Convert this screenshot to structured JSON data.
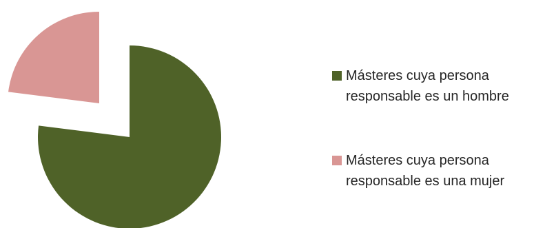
{
  "chart_data": {
    "type": "pie",
    "title": "",
    "slices": [
      {
        "label": "Másteres cuya persona responsable es un hombre",
        "value": 77,
        "color": "#4f6228"
      },
      {
        "label": "Másteres cuya persona responsable es una mujer",
        "value": 23,
        "color": "#d99694"
      }
    ],
    "exploded": true,
    "legend_position": "right"
  }
}
